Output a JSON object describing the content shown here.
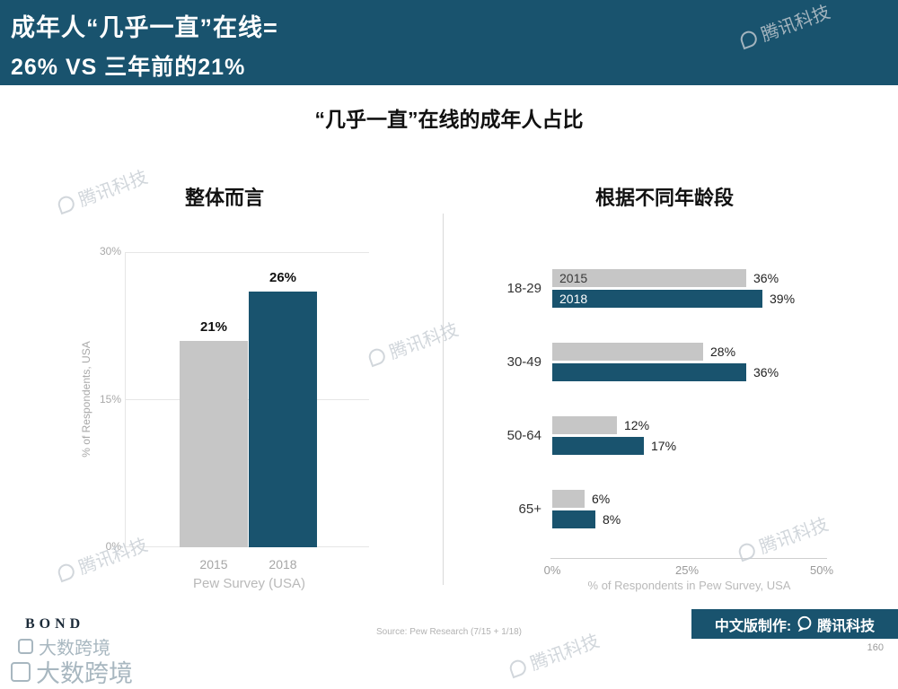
{
  "header": {
    "title_line1": "成年人“几乎一直”在线=",
    "title_line2": "26% VS 三年前的21%"
  },
  "main_title": "“几乎一直”在线的成年人占比",
  "colors": {
    "accent": "#19536e",
    "bar_2015": "#c6c6c6",
    "bar_2018": "#19536e"
  },
  "chart_data": [
    {
      "type": "bar",
      "orientation": "vertical",
      "title": "整体而言",
      "categories": [
        "2015",
        "2018"
      ],
      "values": [
        21,
        26
      ],
      "labels": [
        "21%",
        "26%"
      ],
      "bar_colors": [
        "#c6c6c6",
        "#19536e"
      ],
      "xlabel": "Pew Survey (USA)",
      "ylabel": "% of Respondents, USA",
      "ylim": [
        0,
        30
      ],
      "yticks": [
        "30%",
        "15%",
        "0%"
      ],
      "grid": true
    },
    {
      "type": "bar",
      "orientation": "horizontal",
      "title": "根据不同年龄段",
      "categories": [
        "18-29",
        "30-49",
        "50-64",
        "65+"
      ],
      "series": [
        {
          "name": "2015",
          "color": "#c6c6c6",
          "values": [
            36,
            28,
            12,
            6
          ],
          "labels": [
            "36%",
            "28%",
            "12%",
            "6%"
          ]
        },
        {
          "name": "2018",
          "color": "#19536e",
          "values": [
            39,
            36,
            17,
            8
          ],
          "labels": [
            "39%",
            "36%",
            "17%",
            "8%"
          ]
        }
      ],
      "xlim": [
        0,
        50
      ],
      "xticks": [
        "0%",
        "25%",
        "50%"
      ],
      "xlabel": "% of Respondents in Pew Survey, USA",
      "legend_position": "inside-first-bars"
    }
  ],
  "footer": {
    "bond_logo": "BOND",
    "source": "Source: Pew Research (7/15 + 1/18)",
    "credit_prefix": "中文版制作:",
    "credit_brand": "腾讯科技",
    "page_number": "160"
  },
  "watermarks": {
    "tencent": "腾讯科技",
    "dashu": "大数跨境"
  }
}
